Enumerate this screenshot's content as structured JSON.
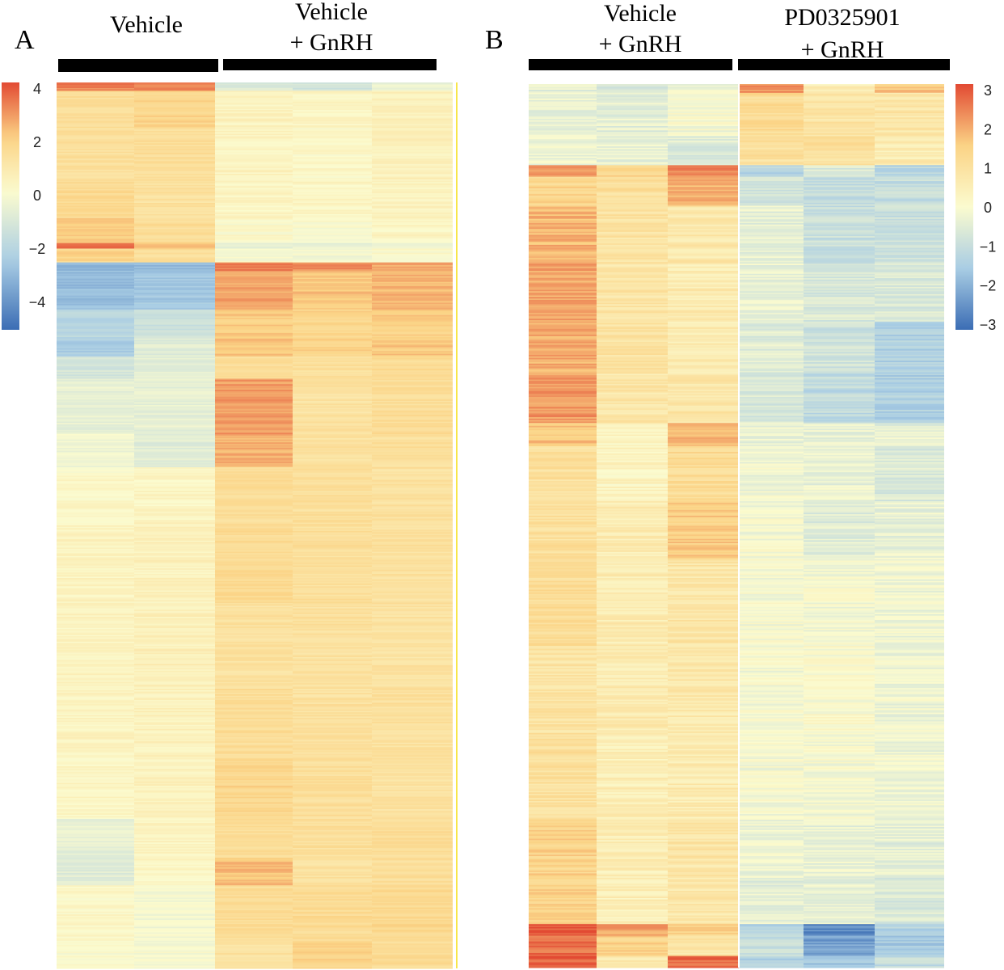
{
  "colors": {
    "low": "#3b6db4",
    "lowmid": "#a9cde4",
    "mid": "#fbfbcf",
    "highmid": "#fbd385",
    "high": "#e24a33",
    "background": "#ffffff",
    "bar": "#000000"
  },
  "chart_data": [
    {
      "type": "heatmap",
      "panel": "A",
      "groups": [
        {
          "label_lines": [
            "Vehicle"
          ],
          "columns": 2
        },
        {
          "label_lines": [
            "Vehicle",
            "+ GnRH"
          ],
          "columns": 3
        }
      ],
      "colorbar": {
        "min": -5,
        "max": 4,
        "ticks": [
          4,
          2,
          0,
          -2,
          -4
        ],
        "tick_labels": [
          "4",
          "2",
          "0",
          "−2",
          "−4"
        ]
      },
      "row_blocks": [
        {
          "rows": 6,
          "values": [
            3.2,
            3.0,
            -1.0,
            -1.2,
            -0.5
          ]
        },
        {
          "rows": 26,
          "values": [
            1.5,
            1.8,
            0.4,
            0.3,
            0.6
          ]
        },
        {
          "rows": 40,
          "values": [
            1.4,
            1.5,
            0.4,
            0.2,
            0.5
          ]
        },
        {
          "rows": 26,
          "values": [
            1.7,
            1.3,
            0.3,
            0.3,
            0.4
          ]
        },
        {
          "rows": 18,
          "values": [
            1.9,
            1.5,
            0.1,
            0.0,
            0.3
          ]
        },
        {
          "rows": 4,
          "values": [
            3.6,
            2.2,
            -0.5,
            -0.6,
            -0.3
          ]
        },
        {
          "rows": 10,
          "values": [
            1.8,
            1.4,
            0.0,
            -0.2,
            0.1
          ]
        },
        {
          "rows": 6,
          "values": [
            -3.0,
            -3.0,
            3.3,
            3.0,
            2.6
          ]
        },
        {
          "rows": 28,
          "values": [
            -2.9,
            -2.6,
            2.7,
            2.2,
            2.4
          ]
        },
        {
          "rows": 20,
          "values": [
            -2.0,
            -1.4,
            2.0,
            1.8,
            2.0
          ]
        },
        {
          "rows": 14,
          "values": [
            -2.4,
            -0.8,
            2.2,
            1.9,
            2.1
          ]
        },
        {
          "rows": 16,
          "values": [
            -1.2,
            -0.8,
            1.4,
            1.3,
            1.6
          ]
        },
        {
          "rows": 40,
          "values": [
            -0.6,
            -0.6,
            2.8,
            1.2,
            1.5
          ]
        },
        {
          "rows": 24,
          "values": [
            -0.3,
            -0.8,
            2.5,
            1.3,
            1.4
          ]
        },
        {
          "rows": 40,
          "values": [
            0.2,
            0.3,
            1.5,
            1.4,
            1.3
          ]
        },
        {
          "rows": 60,
          "values": [
            0.4,
            0.5,
            1.6,
            1.4,
            1.3
          ]
        },
        {
          "rows": 60,
          "values": [
            0.4,
            0.6,
            1.3,
            1.3,
            1.2
          ]
        },
        {
          "rows": 50,
          "values": [
            0.4,
            0.5,
            1.5,
            1.3,
            1.3
          ]
        },
        {
          "rows": 44,
          "values": [
            0.3,
            0.5,
            1.8,
            1.4,
            1.2
          ]
        },
        {
          "rows": 28,
          "values": [
            -0.6,
            0.4,
            1.5,
            1.4,
            1.5
          ]
        },
        {
          "rows": 20,
          "values": [
            -0.8,
            0.3,
            2.3,
            1.3,
            1.4
          ]
        },
        {
          "rows": 40,
          "values": [
            0.2,
            -0.2,
            1.5,
            1.6,
            1.7
          ]
        },
        {
          "rows": 20,
          "values": [
            0.0,
            -0.1,
            1.3,
            1.8,
            1.5
          ]
        }
      ]
    },
    {
      "type": "heatmap",
      "panel": "B",
      "groups": [
        {
          "label_lines": [
            "Vehicle",
            "+ GnRH"
          ],
          "columns": 3
        },
        {
          "label_lines": [
            "PD0325901",
            "+ GnRH"
          ],
          "columns": 3
        }
      ],
      "colorbar": {
        "min": -3,
        "max": 3,
        "ticks": [
          3,
          2,
          1,
          0,
          -1,
          -2,
          -3
        ],
        "tick_labels": [
          "3",
          "2",
          "1",
          "0",
          "−1",
          "−2",
          "−3"
        ]
      },
      "row_blocks": [
        {
          "rows": 6,
          "values": [
            -0.4,
            -0.8,
            -0.2,
            2.3,
            0.5,
            1.6
          ]
        },
        {
          "rows": 30,
          "values": [
            -0.3,
            -0.4,
            -0.1,
            1.2,
            0.9,
            0.8
          ]
        },
        {
          "rows": 20,
          "values": [
            -0.2,
            -0.3,
            -0.5,
            1.0,
            1.0,
            0.6
          ]
        },
        {
          "rows": 8,
          "values": [
            2.2,
            1.3,
            2.3,
            -1.2,
            -0.6,
            -1.3
          ]
        },
        {
          "rows": 20,
          "values": [
            1.3,
            1.0,
            1.9,
            -0.7,
            -1.0,
            -1.0
          ]
        },
        {
          "rows": 40,
          "values": [
            1.8,
            0.9,
            0.7,
            -0.4,
            -0.9,
            -0.9
          ]
        },
        {
          "rows": 40,
          "values": [
            2.0,
            0.8,
            0.6,
            -0.3,
            -0.6,
            -0.6
          ]
        },
        {
          "rows": 36,
          "values": [
            1.9,
            0.9,
            0.6,
            -0.5,
            -0.8,
            -1.3
          ]
        },
        {
          "rows": 34,
          "values": [
            2.1,
            0.8,
            0.8,
            -0.6,
            -1.1,
            -1.4
          ]
        },
        {
          "rows": 16,
          "values": [
            1.6,
            0.3,
            1.9,
            -0.3,
            -0.3,
            -0.4
          ]
        },
        {
          "rows": 38,
          "values": [
            1.0,
            0.3,
            1.2,
            -0.2,
            -0.3,
            -0.6
          ]
        },
        {
          "rows": 40,
          "values": [
            1.0,
            0.6,
            1.5,
            -0.1,
            -0.5,
            -0.3
          ]
        },
        {
          "rows": 60,
          "values": [
            1.1,
            0.6,
            0.8,
            -0.1,
            -0.1,
            -0.2
          ]
        },
        {
          "rows": 60,
          "values": [
            0.9,
            0.6,
            0.7,
            -0.1,
            0.0,
            -0.2
          ]
        },
        {
          "rows": 60,
          "values": [
            1.0,
            0.5,
            0.6,
            -0.1,
            -0.1,
            -0.2
          ]
        },
        {
          "rows": 40,
          "values": [
            1.4,
            0.5,
            0.8,
            -0.2,
            -0.3,
            -0.4
          ]
        },
        {
          "rows": 32,
          "values": [
            1.4,
            0.5,
            0.7,
            -0.4,
            -0.4,
            -0.6
          ]
        },
        {
          "rows": 8,
          "values": [
            2.9,
            2.0,
            1.4,
            -1.3,
            -2.5,
            -1.3
          ]
        },
        {
          "rows": 14,
          "values": [
            2.6,
            1.4,
            0.8,
            -1.0,
            -2.2,
            -1.5
          ]
        },
        {
          "rows": 8,
          "values": [
            2.7,
            0.6,
            2.6,
            -1.3,
            -1.6,
            -1.0
          ]
        }
      ]
    }
  ]
}
